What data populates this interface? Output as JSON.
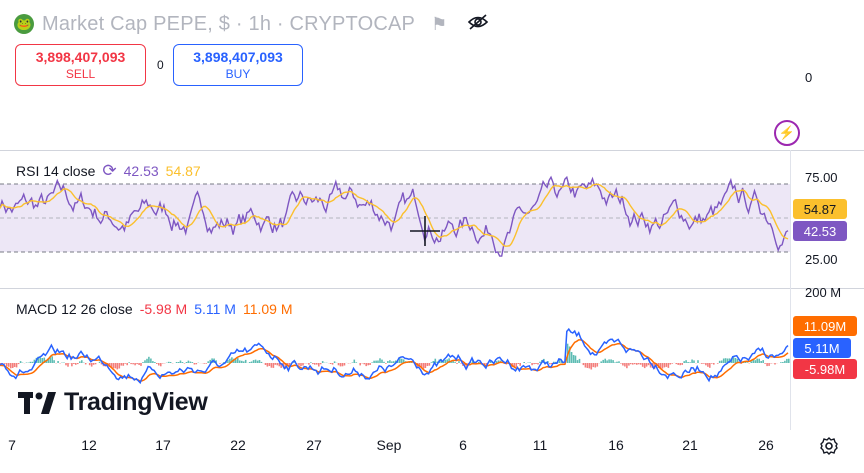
{
  "header": {
    "title": "Market Cap PEPE, $ · 1h · CRYPTOCAP",
    "coin_icon": "pepe-frog-icon",
    "flag_icon": "flag-icon",
    "eye_icon": "eye-off-icon"
  },
  "trade": {
    "sell_price": "3,898,407,093",
    "sell_label": "SELL",
    "spread": "0",
    "buy_price": "3,898,407,093",
    "buy_label": "BUY"
  },
  "price_axis": {
    "zero": "0"
  },
  "rsi": {
    "name": "RSI 14 close",
    "value1": "42.53",
    "value2": "54.87",
    "axis_upper": "75.00",
    "axis_lower": "25.00",
    "tag_ma": "54.87",
    "tag_rsi": "42.53",
    "colors": {
      "rsi": "#7e57c2",
      "ma": "#fbc02d",
      "band": "#ede7f6"
    }
  },
  "macd": {
    "name": "MACD 12 26 close",
    "value_hist": "-5.98 M",
    "value_macd": "5.11 M",
    "value_signal": "11.09 M",
    "axis_top": "200 M",
    "tag_signal": "11.09M",
    "tag_macd": "5.11M",
    "tag_hist": "-5.98M",
    "colors": {
      "macd": "#2962ff",
      "signal": "#ff6d00",
      "hist_pos": "#26a69a",
      "hist_neg": "#ef5350"
    }
  },
  "time_axis": [
    "7",
    "12",
    "17",
    "22",
    "27",
    "Sep",
    "6",
    "11",
    "16",
    "21",
    "26"
  ],
  "branding": {
    "logo_text": "TradingView",
    "logo_icon": "tradingview-logo-icon"
  },
  "settings_icon": "gear-icon",
  "cursor_icon": "crosshair-icon"
}
